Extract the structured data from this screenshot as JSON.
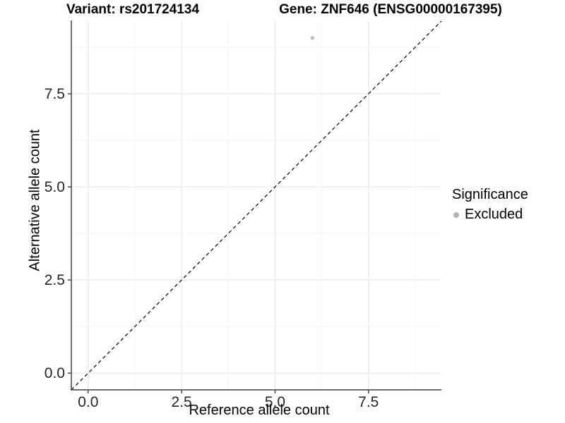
{
  "chart_data": {
    "type": "scatter",
    "titles": [
      "Variant: rs201724134",
      "Gene: ZNF646 (ENSG00000167395)"
    ],
    "xlabel": "Reference allele count",
    "ylabel": "Alternative allele count",
    "xlim": [
      -0.45,
      9.45
    ],
    "ylim": [
      -0.45,
      9.45
    ],
    "xticks": [
      0,
      2.5,
      5,
      7.5
    ],
    "xtick_labels": [
      "0.0",
      "2.5",
      "5.0",
      "7.5"
    ],
    "yticks": [
      0,
      2.5,
      5,
      7.5
    ],
    "ytick_labels": [
      "0.0",
      "2.5",
      "5.0",
      "7.5"
    ],
    "minor_gridlines": [
      1.25,
      3.75,
      6.25,
      8.75
    ],
    "grid": "on",
    "legend_position": "right",
    "legend": {
      "title": "Significance",
      "entries": [
        {
          "label": "Excluded",
          "color": "#b4b4b4"
        }
      ]
    },
    "series": [
      {
        "name": "Excluded",
        "color": "#c2c2c2",
        "points": [
          {
            "x": 6,
            "y": 9
          }
        ]
      }
    ],
    "reference_line": {
      "type": "identity",
      "slope": 1,
      "intercept": 0,
      "style": "dashed",
      "color": "#000000"
    }
  },
  "colors": {
    "background": "#ffffff",
    "axis_line": "#404040",
    "tick_mark": "#404040",
    "tick_label": "#262626",
    "major_grid": "#e9e9e9",
    "minor_grid": "#f5f5f5"
  }
}
